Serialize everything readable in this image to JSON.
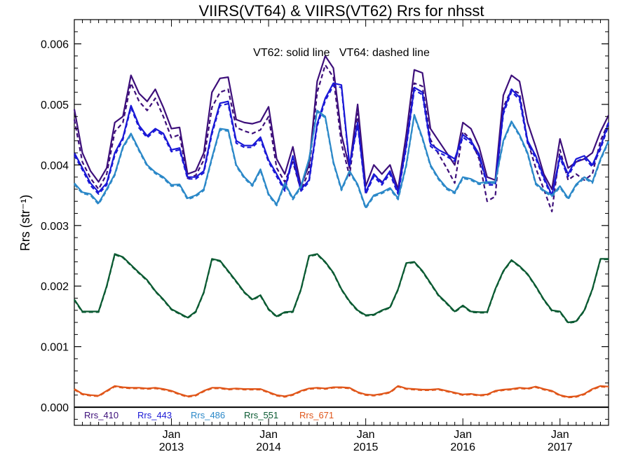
{
  "chart_data": {
    "type": "line",
    "title": "VIIRS(VT64) & VIIRS(VT62)  Rrs for nhsst",
    "annotation": "VT62: solid line   VT64: dashed line",
    "xlabel": "",
    "ylabel": "Rrs (str⁻¹)",
    "ylim": [
      -0.0003,
      0.0064
    ],
    "xlim": [
      "2012-01",
      "2017-07"
    ],
    "grid": false,
    "legend_position": "bottom-left",
    "y_ticks": [
      "0.000",
      "0.001",
      "0.002",
      "0.003",
      "0.004",
      "0.005",
      "0.006"
    ],
    "x_ticks": [
      {
        "month": "Jan",
        "year": "2013"
      },
      {
        "month": "Jan",
        "year": "2014"
      },
      {
        "month": "Jan",
        "year": "2015"
      },
      {
        "month": "Jan",
        "year": "2016"
      },
      {
        "month": "Jan",
        "year": "2017"
      }
    ],
    "x": [
      "2012-01",
      "2012-02",
      "2012-03",
      "2012-04",
      "2012-05",
      "2012-06",
      "2012-07",
      "2012-08",
      "2012-09",
      "2012-10",
      "2012-11",
      "2012-12",
      "2013-01",
      "2013-02",
      "2013-03",
      "2013-04",
      "2013-05",
      "2013-06",
      "2013-07",
      "2013-08",
      "2013-09",
      "2013-10",
      "2013-11",
      "2013-12",
      "2014-01",
      "2014-02",
      "2014-03",
      "2014-04",
      "2014-05",
      "2014-06",
      "2014-07",
      "2014-08",
      "2014-09",
      "2014-10",
      "2014-11",
      "2014-12",
      "2015-01",
      "2015-02",
      "2015-03",
      "2015-04",
      "2015-05",
      "2015-06",
      "2015-07",
      "2015-08",
      "2015-09",
      "2015-10",
      "2015-11",
      "2015-12",
      "2016-01",
      "2016-02",
      "2016-03",
      "2016-04",
      "2016-05",
      "2016-06",
      "2016-07",
      "2016-08",
      "2016-09",
      "2016-10",
      "2016-11",
      "2016-12",
      "2017-01",
      "2017-02",
      "2017-03",
      "2017-04",
      "2017-05",
      "2017-06",
      "2017-07"
    ],
    "series": [
      {
        "name": "Rrs_410",
        "color": "#3d0f7a",
        "version": "VT62",
        "style": "solid",
        "values": [
          0.00492,
          0.0042,
          0.0039,
          0.00372,
          0.00395,
          0.0047,
          0.0048,
          0.00548,
          0.00518,
          0.00505,
          0.00525,
          0.00495,
          0.0046,
          0.00462,
          0.00385,
          0.0039,
          0.0042,
          0.0052,
          0.00543,
          0.00545,
          0.00475,
          0.0047,
          0.00468,
          0.00472,
          0.00496,
          0.0041,
          0.00385,
          0.0043,
          0.00365,
          0.004,
          0.00538,
          0.0058,
          0.0056,
          0.0045,
          0.00395,
          0.005,
          0.00365,
          0.004,
          0.00385,
          0.004,
          0.0036,
          0.0045,
          0.00557,
          0.00552,
          0.0046,
          0.0044,
          0.0042,
          0.004,
          0.0047,
          0.0046,
          0.0043,
          0.0038,
          0.00375,
          0.00515,
          0.00548,
          0.00538,
          0.0047,
          0.0043,
          0.00385,
          0.0036,
          0.00443,
          0.00395,
          0.00405,
          0.0041,
          0.0042,
          0.00455,
          0.00482
        ]
      },
      {
        "name": "Rrs_410",
        "color": "#3d0f7a",
        "version": "VT64",
        "style": "dashed",
        "values": [
          0.00475,
          0.00405,
          0.00378,
          0.0036,
          0.00385,
          0.00455,
          0.0047,
          0.00535,
          0.00505,
          0.0049,
          0.0051,
          0.0048,
          0.00445,
          0.0045,
          0.00378,
          0.00383,
          0.00408,
          0.00495,
          0.0052,
          0.00525,
          0.00462,
          0.00456,
          0.00452,
          0.00458,
          0.0048,
          0.00395,
          0.00372,
          0.00405,
          0.00358,
          0.0039,
          0.0052,
          0.00565,
          0.00545,
          0.00435,
          0.00382,
          0.00485,
          0.00352,
          0.00385,
          0.00372,
          0.00385,
          0.00352,
          0.0044,
          0.00535,
          0.0053,
          0.00442,
          0.00418,
          0.00395,
          0.0037,
          0.00455,
          0.00442,
          0.0041,
          0.0034,
          0.00348,
          0.00495,
          0.00525,
          0.00518,
          0.0044,
          0.00395,
          0.0036,
          0.00323,
          0.00425,
          0.00375,
          0.00385,
          0.00375,
          0.00385,
          0.0044,
          0.0047
        ]
      },
      {
        "name": "Rrs_443",
        "color": "#1a18d6",
        "version": "VT62",
        "style": "solid",
        "values": [
          0.0042,
          0.00395,
          0.0037,
          0.00355,
          0.0037,
          0.0042,
          0.00445,
          0.00498,
          0.00465,
          0.00448,
          0.0046,
          0.00452,
          0.00425,
          0.00428,
          0.0038,
          0.0038,
          0.0039,
          0.00455,
          0.00502,
          0.00505,
          0.0044,
          0.00432,
          0.00432,
          0.00446,
          0.00408,
          0.00385,
          0.0036,
          0.00415,
          0.0036,
          0.00375,
          0.00468,
          0.0051,
          0.00535,
          0.00532,
          0.004,
          0.0047,
          0.00355,
          0.00385,
          0.0037,
          0.0039,
          0.00355,
          0.00432,
          0.00528,
          0.0052,
          0.00435,
          0.00425,
          0.00418,
          0.0041,
          0.0045,
          0.0044,
          0.00418,
          0.0037,
          0.0037,
          0.00488,
          0.00525,
          0.00512,
          0.0044,
          0.00415,
          0.0038,
          0.0035,
          0.00415,
          0.00385,
          0.0041,
          0.00415,
          0.004,
          0.0043,
          0.0047
        ]
      },
      {
        "name": "Rrs_443",
        "color": "#1a18d6",
        "version": "VT64",
        "style": "dashed",
        "values": [
          0.00416,
          0.00392,
          0.00366,
          0.00352,
          0.00367,
          0.00416,
          0.00442,
          0.00495,
          0.00461,
          0.00445,
          0.00457,
          0.00449,
          0.00422,
          0.00425,
          0.00377,
          0.00377,
          0.00387,
          0.00451,
          0.00498,
          0.00501,
          0.00436,
          0.00429,
          0.00429,
          0.00442,
          0.00405,
          0.00381,
          0.00357,
          0.00411,
          0.00357,
          0.00372,
          0.00464,
          0.00506,
          0.00531,
          0.00528,
          0.00397,
          0.00466,
          0.00352,
          0.00381,
          0.00367,
          0.00386,
          0.00352,
          0.00428,
          0.00524,
          0.00516,
          0.00431,
          0.00421,
          0.00414,
          0.00406,
          0.00446,
          0.00436,
          0.00414,
          0.00367,
          0.00367,
          0.00484,
          0.00521,
          0.00508,
          0.00436,
          0.00411,
          0.00377,
          0.00347,
          0.00411,
          0.00381,
          0.00406,
          0.00411,
          0.00397,
          0.00426,
          0.00466
        ]
      },
      {
        "name": "Rrs_486",
        "color": "#2b88c8",
        "version": "VT62",
        "style": "solid",
        "values": [
          0.0037,
          0.00355,
          0.00352,
          0.00337,
          0.0036,
          0.00385,
          0.0043,
          0.00452,
          0.00425,
          0.004,
          0.00388,
          0.0038,
          0.00367,
          0.00368,
          0.00345,
          0.0035,
          0.0036,
          0.00412,
          0.0046,
          0.00458,
          0.004,
          0.0038,
          0.00367,
          0.00393,
          0.00352,
          0.00335,
          0.0037,
          0.00345,
          0.00365,
          0.0041,
          0.0049,
          0.0048,
          0.00405,
          0.0036,
          0.0039,
          0.00368,
          0.0033,
          0.0035,
          0.00355,
          0.00362,
          0.00345,
          0.004,
          0.00483,
          0.00445,
          0.004,
          0.00378,
          0.00362,
          0.00355,
          0.0038,
          0.00377,
          0.0037,
          0.00372,
          0.00372,
          0.0044,
          0.00472,
          0.0045,
          0.0042,
          0.0037,
          0.00358,
          0.0035,
          0.00365,
          0.00345,
          0.00368,
          0.0038,
          0.00372,
          0.0041,
          0.0044
        ]
      },
      {
        "name": "Rrs_486",
        "color": "#2b88c8",
        "version": "VT64",
        "style": "dashed",
        "values": [
          0.00368,
          0.00353,
          0.0035,
          0.00335,
          0.00358,
          0.00383,
          0.00428,
          0.0045,
          0.00423,
          0.00398,
          0.00386,
          0.00378,
          0.00365,
          0.00366,
          0.00343,
          0.00348,
          0.00358,
          0.0041,
          0.00458,
          0.00456,
          0.00398,
          0.00378,
          0.00365,
          0.00391,
          0.0035,
          0.00333,
          0.00368,
          0.00343,
          0.00363,
          0.00408,
          0.00488,
          0.00478,
          0.00403,
          0.00358,
          0.00388,
          0.00366,
          0.00328,
          0.00348,
          0.00353,
          0.0036,
          0.00343,
          0.00398,
          0.00481,
          0.00443,
          0.00398,
          0.00376,
          0.0036,
          0.00353,
          0.00378,
          0.00375,
          0.00368,
          0.0037,
          0.0037,
          0.00438,
          0.0047,
          0.00448,
          0.00418,
          0.00368,
          0.00356,
          0.00348,
          0.00363,
          0.00343,
          0.00366,
          0.00378,
          0.0037,
          0.00408,
          0.00438
        ]
      },
      {
        "name": "Rrs_551",
        "color": "#0a5a32",
        "version": "VT62",
        "style": "solid",
        "values": [
          0.00178,
          0.00158,
          0.00158,
          0.00158,
          0.002,
          0.00253,
          0.00248,
          0.00235,
          0.00222,
          0.0021,
          0.00192,
          0.00178,
          0.00162,
          0.00155,
          0.00148,
          0.00158,
          0.0019,
          0.00245,
          0.00242,
          0.00225,
          0.00208,
          0.0019,
          0.00178,
          0.00185,
          0.00162,
          0.0015,
          0.00157,
          0.00158,
          0.00195,
          0.0025,
          0.00253,
          0.0024,
          0.00222,
          0.00195,
          0.00175,
          0.0016,
          0.00152,
          0.00153,
          0.0016,
          0.00165,
          0.00195,
          0.00238,
          0.0024,
          0.00225,
          0.00205,
          0.00185,
          0.00172,
          0.00158,
          0.00168,
          0.00158,
          0.00157,
          0.00157,
          0.00195,
          0.00225,
          0.00243,
          0.00233,
          0.0022,
          0.002,
          0.00178,
          0.0016,
          0.00158,
          0.0014,
          0.00142,
          0.0016,
          0.00195,
          0.00245,
          0.00245
        ]
      },
      {
        "name": "Rrs_551",
        "color": "#0a5a32",
        "version": "VT64",
        "style": "dashed",
        "values": [
          0.00177,
          0.00157,
          0.00157,
          0.00157,
          0.00199,
          0.00252,
          0.00247,
          0.00234,
          0.00221,
          0.00209,
          0.00191,
          0.00177,
          0.00161,
          0.00154,
          0.00147,
          0.00157,
          0.00189,
          0.00244,
          0.00241,
          0.00224,
          0.00207,
          0.00189,
          0.00177,
          0.00184,
          0.00161,
          0.00149,
          0.00156,
          0.00157,
          0.00194,
          0.00249,
          0.00252,
          0.00239,
          0.00221,
          0.00194,
          0.00174,
          0.00159,
          0.00151,
          0.00152,
          0.00159,
          0.00164,
          0.00194,
          0.00237,
          0.00239,
          0.00224,
          0.00204,
          0.00184,
          0.00171,
          0.00157,
          0.00167,
          0.00157,
          0.00156,
          0.00156,
          0.00194,
          0.00224,
          0.00242,
          0.00232,
          0.00219,
          0.00199,
          0.00177,
          0.00159,
          0.00157,
          0.00139,
          0.00141,
          0.00159,
          0.00194,
          0.00244,
          0.00244
        ]
      },
      {
        "name": "Rrs_671",
        "color": "#e0561a",
        "version": "VT62",
        "style": "solid",
        "values": [
          0.0003,
          0.00022,
          0.0002,
          0.00019,
          0.00027,
          0.00035,
          0.00033,
          0.00032,
          0.00032,
          0.00031,
          0.00032,
          0.0003,
          0.00027,
          0.00022,
          0.00018,
          0.0002,
          0.00027,
          0.00032,
          0.00032,
          0.0003,
          0.00031,
          0.0003,
          0.0003,
          0.0003,
          0.00025,
          0.0002,
          0.00018,
          0.00021,
          0.00027,
          0.00031,
          0.00032,
          0.00031,
          0.00033,
          0.00033,
          0.00032,
          0.00025,
          0.00021,
          0.0002,
          0.00022,
          0.00025,
          0.00035,
          0.00031,
          0.0003,
          0.00029,
          0.00029,
          0.0003,
          0.00027,
          0.00024,
          0.00021,
          0.00022,
          0.0002,
          0.00021,
          0.00027,
          0.00029,
          0.0003,
          0.00032,
          0.00031,
          0.00034,
          0.0003,
          0.00027,
          0.0002,
          0.00017,
          0.00018,
          0.00022,
          0.0003,
          0.00035,
          0.00034
        ]
      },
      {
        "name": "Rrs_671",
        "color": "#e0561a",
        "version": "VT64",
        "style": "dashed",
        "values": [
          0.00029,
          0.00021,
          0.00019,
          0.00018,
          0.00026,
          0.00034,
          0.00032,
          0.00031,
          0.00031,
          0.0003,
          0.00031,
          0.00029,
          0.00026,
          0.00021,
          0.00017,
          0.00019,
          0.00026,
          0.00031,
          0.00031,
          0.00029,
          0.0003,
          0.00029,
          0.00029,
          0.00029,
          0.00024,
          0.00019,
          0.00017,
          0.0002,
          0.00026,
          0.0003,
          0.00031,
          0.0003,
          0.00032,
          0.00032,
          0.00031,
          0.00024,
          0.0002,
          0.00019,
          0.00021,
          0.00024,
          0.00034,
          0.0003,
          0.00029,
          0.00028,
          0.00028,
          0.00029,
          0.00026,
          0.00023,
          0.0002,
          0.00021,
          0.00019,
          0.0002,
          0.00026,
          0.00028,
          0.00029,
          0.00031,
          0.0003,
          0.00033,
          0.00029,
          0.00026,
          0.00019,
          0.00016,
          0.00017,
          0.00021,
          0.00029,
          0.00034,
          0.00033
        ]
      }
    ],
    "legend": [
      {
        "label": "Rrs_410",
        "color": "#3d0f7a"
      },
      {
        "label": "Rrs_443",
        "color": "#1a18d6"
      },
      {
        "label": "Rrs_486",
        "color": "#2b88c8"
      },
      {
        "label": "Rrs_551",
        "color": "#0a5a32"
      },
      {
        "label": "Rrs_671",
        "color": "#e0561a"
      }
    ],
    "zero_line": true
  }
}
